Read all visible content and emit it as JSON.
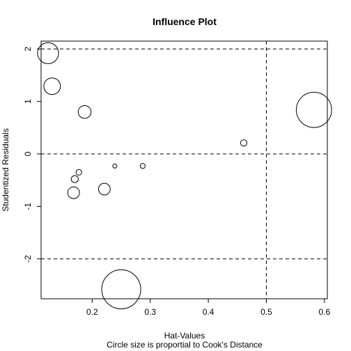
{
  "chart_data": {
    "type": "scatter",
    "title": "Influence Plot",
    "xlabel": "Hat-Values",
    "ylabel": "Studentized Residuals",
    "subtitle": "Circle size is proportial to Cook's Distance",
    "xlim": [
      0.112,
      0.605
    ],
    "ylim": [
      -2.76,
      2.15
    ],
    "x_ticks": [
      0.2,
      0.3,
      0.4,
      0.5,
      0.6
    ],
    "x_tick_labels": [
      "0.2",
      "0.3",
      "0.4",
      "0.5",
      "0.6"
    ],
    "y_ticks": [
      -2,
      -1,
      0,
      1,
      2
    ],
    "y_tick_labels": [
      "-2",
      "-1",
      "0",
      "1",
      "2"
    ],
    "reference_lines": {
      "horizontal": [
        -2,
        0,
        2
      ],
      "vertical": [
        0.5
      ],
      "style": "dashed"
    },
    "grid": false,
    "legend": "none",
    "points": [
      {
        "x": 0.124,
        "y": 1.92,
        "cooks_distance": 0.16
      },
      {
        "x": 0.131,
        "y": 1.29,
        "cooks_distance": 0.1
      },
      {
        "x": 0.187,
        "y": 0.8,
        "cooks_distance": 0.06
      },
      {
        "x": 0.582,
        "y": 0.84,
        "cooks_distance": 0.45
      },
      {
        "x": 0.461,
        "y": 0.21,
        "cooks_distance": 0.015
      },
      {
        "x": 0.239,
        "y": -0.23,
        "cooks_distance": 0.006
      },
      {
        "x": 0.287,
        "y": -0.23,
        "cooks_distance": 0.009
      },
      {
        "x": 0.177,
        "y": -0.35,
        "cooks_distance": 0.012
      },
      {
        "x": 0.17,
        "y": -0.48,
        "cooks_distance": 0.018
      },
      {
        "x": 0.221,
        "y": -0.67,
        "cooks_distance": 0.05
      },
      {
        "x": 0.168,
        "y": -0.74,
        "cooks_distance": 0.05
      },
      {
        "x": 0.25,
        "y": -2.58,
        "cooks_distance": 0.55
      }
    ]
  }
}
